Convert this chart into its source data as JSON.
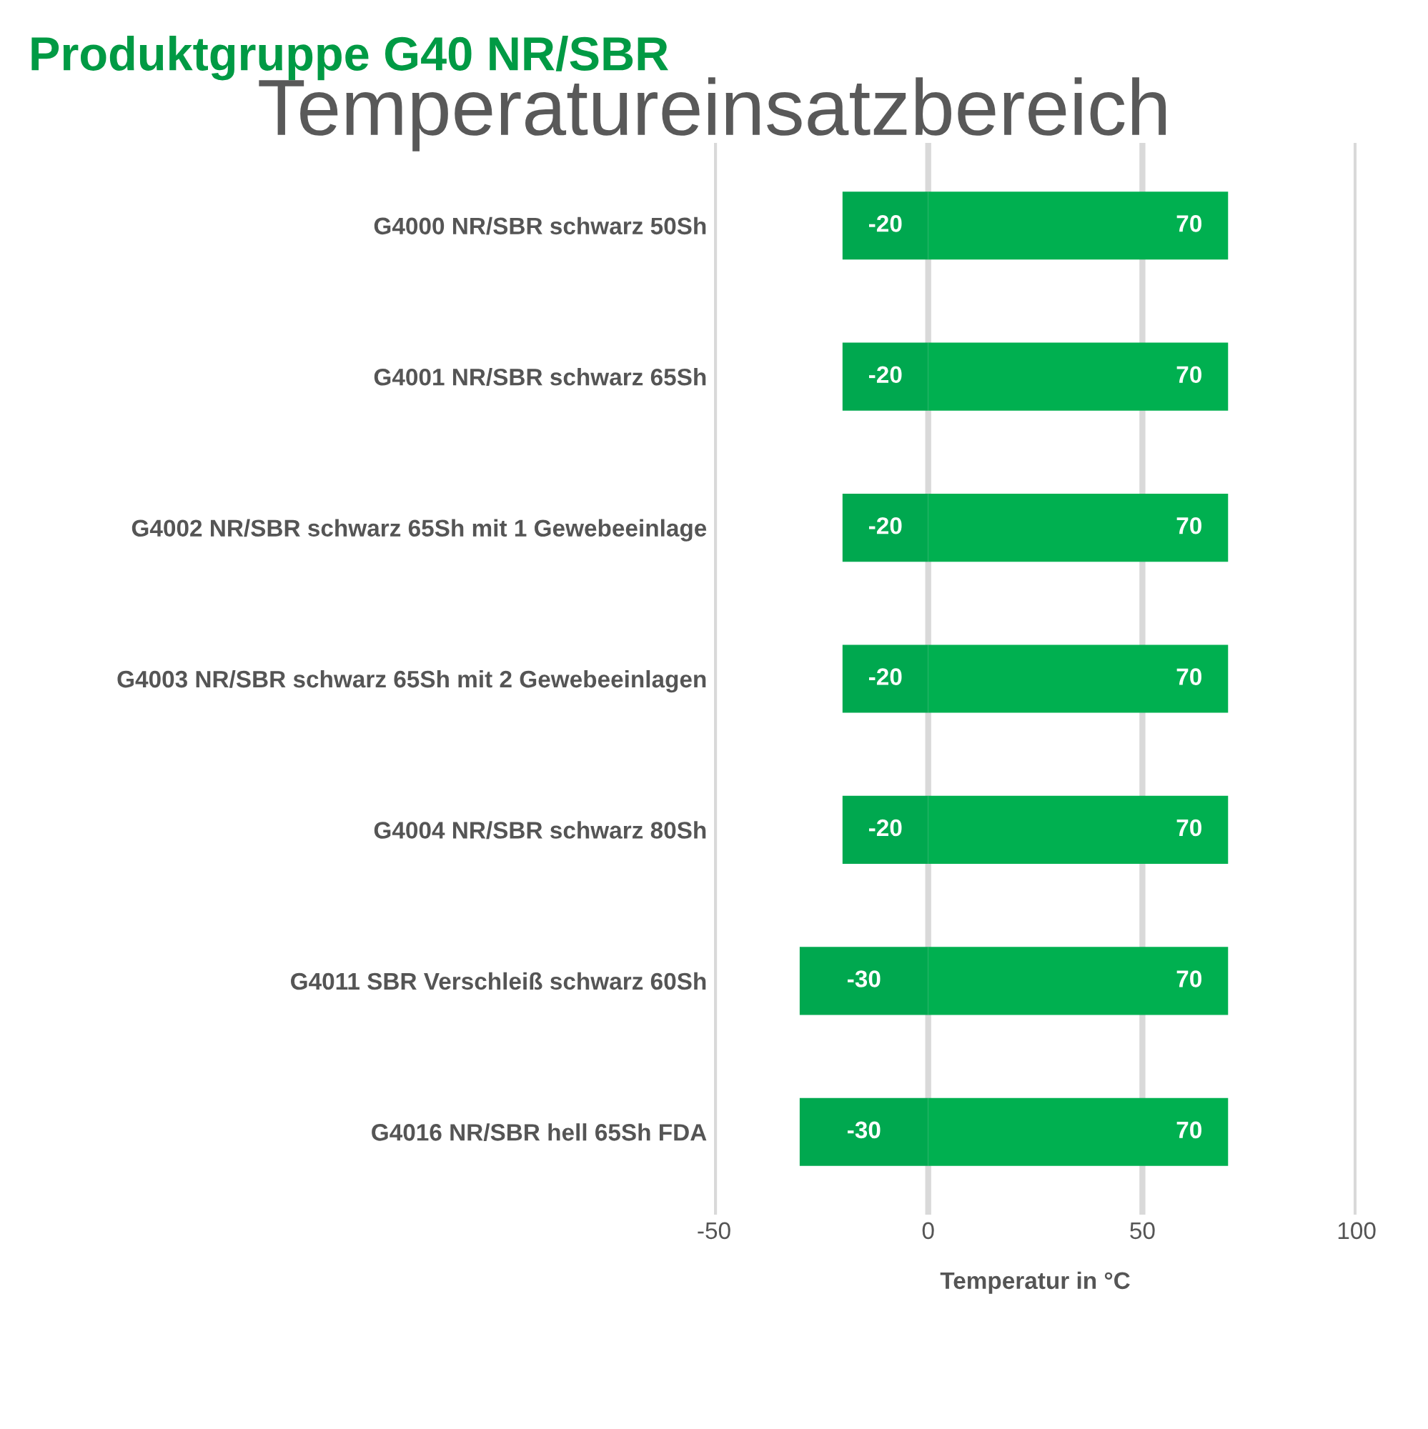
{
  "chart_data": {
    "type": "bar",
    "orientation": "horizontal",
    "stacked": true,
    "title": "Produktgruppe G40 NR/SBR",
    "subtitle": "Temperatureinsatzbereich",
    "xlabel": "Temperatur in °C",
    "categories": [
      "G4000 NR/SBR schwarz 50Sh",
      "G4001 NR/SBR schwarz 65Sh",
      "G4002 NR/SBR schwarz 65Sh mit 1 Gewebeeinlage",
      "G4003 NR/SBR schwarz 65Sh mit 2 Gewebeeinlagen",
      "G4004 NR/SBR schwarz 80Sh",
      "G4011 SBR Verschleiß schwarz 60Sh",
      "G4016 NR/SBR hell 65Sh FDA"
    ],
    "series": [
      {
        "color": "#00a84f",
        "values": [
          -20,
          -20,
          -20,
          -20,
          -20,
          -30,
          -30
        ]
      },
      {
        "color": "#00b050",
        "values": [
          70,
          70,
          70,
          70,
          70,
          70,
          70
        ]
      }
    ],
    "xlim": [
      -50,
      100
    ],
    "xticks": [
      -50,
      0,
      50,
      100
    ],
    "grid": "x",
    "data_labels": true,
    "legend": false
  }
}
